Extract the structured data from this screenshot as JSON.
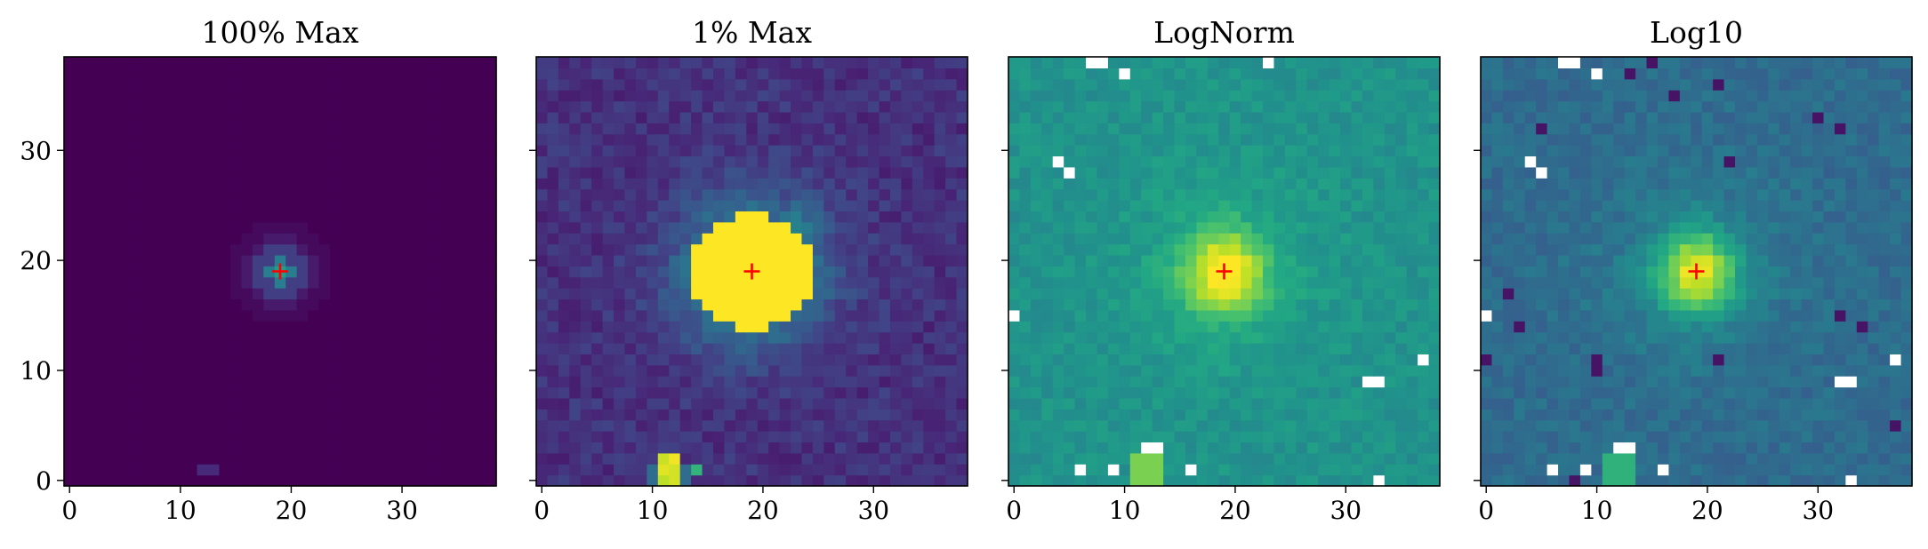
{
  "figure": {
    "panel_titles": [
      "100% Max",
      "1% Max",
      "LogNorm",
      "Log10"
    ]
  },
  "chart_data": [
    {
      "type": "heatmap",
      "title": "100% Max",
      "grid_size": [
        39,
        39
      ],
      "xlim": [
        -0.5,
        38.5
      ],
      "ylim": [
        -0.5,
        38.5
      ],
      "xticks": [
        0,
        10,
        20,
        30
      ],
      "yticks": [
        0,
        10,
        20,
        30
      ],
      "show_ytick_labels": true,
      "colormap": "viridis",
      "norm": "linear",
      "vmax_fraction": 1.0,
      "marker": {
        "symbol": "+",
        "color": "#ff0000",
        "x": 19,
        "y": 19
      },
      "source": {
        "x": 19,
        "y": 19
      },
      "grid": false
    },
    {
      "type": "heatmap",
      "title": "1% Max",
      "grid_size": [
        39,
        39
      ],
      "xlim": [
        -0.5,
        38.5
      ],
      "ylim": [
        -0.5,
        38.5
      ],
      "xticks": [
        0,
        10,
        20,
        30
      ],
      "yticks": [
        0,
        10,
        20,
        30
      ],
      "show_ytick_labels": false,
      "colormap": "viridis",
      "norm": "linear",
      "vmax_fraction": 0.01,
      "marker": {
        "symbol": "+",
        "color": "#ff0000",
        "x": 19,
        "y": 19
      },
      "source": {
        "x": 19,
        "y": 19
      },
      "grid": false
    },
    {
      "type": "heatmap",
      "title": "LogNorm",
      "grid_size": [
        39,
        39
      ],
      "xlim": [
        -0.5,
        38.5
      ],
      "ylim": [
        -0.5,
        38.5
      ],
      "xticks": [
        0,
        10,
        20,
        30
      ],
      "yticks": [
        0,
        10,
        20,
        30
      ],
      "show_ytick_labels": false,
      "colormap": "viridis",
      "norm": "log",
      "marker": {
        "symbol": "+",
        "color": "#ff0000",
        "x": 19,
        "y": 19
      },
      "source": {
        "x": 19,
        "y": 19
      },
      "masked_pixels": [
        [
          7,
          38
        ],
        [
          8,
          38
        ],
        [
          23,
          38
        ],
        [
          10,
          37
        ],
        [
          4,
          29
        ],
        [
          5,
          28
        ],
        [
          0,
          15
        ],
        [
          37,
          11
        ],
        [
          32,
          9
        ],
        [
          33,
          9
        ],
        [
          12,
          3
        ],
        [
          13,
          3
        ],
        [
          6,
          1
        ],
        [
          9,
          1
        ],
        [
          16,
          1
        ],
        [
          33,
          0
        ]
      ],
      "grid": false
    },
    {
      "type": "heatmap",
      "title": "Log10",
      "grid_size": [
        39,
        39
      ],
      "xlim": [
        -0.5,
        38.5
      ],
      "ylim": [
        -0.5,
        38.5
      ],
      "xticks": [
        0,
        10,
        20,
        30
      ],
      "yticks": [
        0,
        10,
        20,
        30
      ],
      "show_ytick_labels": false,
      "colormap": "viridis",
      "norm": "log10",
      "marker": {
        "symbol": "+",
        "color": "#ff0000",
        "x": 19,
        "y": 19
      },
      "source": {
        "x": 19,
        "y": 19
      },
      "masked_pixels": [
        [
          7,
          38
        ],
        [
          8,
          38
        ],
        [
          10,
          37
        ],
        [
          4,
          29
        ],
        [
          5,
          28
        ],
        [
          0,
          15
        ],
        [
          37,
          11
        ],
        [
          32,
          9
        ],
        [
          33,
          9
        ],
        [
          12,
          3
        ],
        [
          13,
          3
        ],
        [
          6,
          1
        ],
        [
          9,
          1
        ],
        [
          16,
          1
        ],
        [
          33,
          0
        ]
      ],
      "grid": false
    }
  ]
}
